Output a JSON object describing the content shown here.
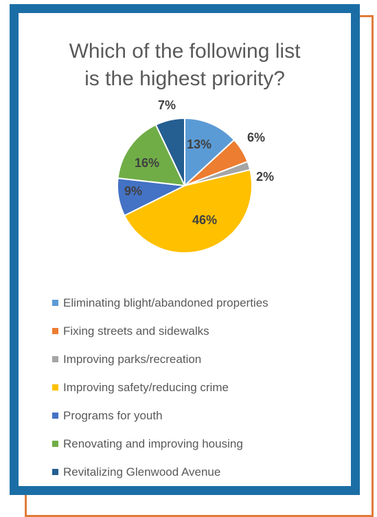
{
  "chart_data": {
    "type": "pie",
    "title_lines": [
      "Which of the following list",
      "is the highest priority?"
    ],
    "categories": [
      "Eliminating blight/abandoned properties",
      "Fixing streets and sidewalks",
      "Improving parks/recreation",
      "Improving safety/reducing crime",
      "Programs for youth",
      "Renovating and improving housing",
      "Revitalizing Glenwood Avenue"
    ],
    "values": [
      13,
      6,
      2,
      46,
      9,
      16,
      7
    ],
    "labels": [
      "13%",
      "6%",
      "2%",
      "46%",
      "9%",
      "16%",
      "7%"
    ],
    "colors": [
      "#5b9bd5",
      "#ed7d31",
      "#a5a5a5",
      "#ffc000",
      "#4472c4",
      "#70ad47",
      "#255e91"
    ],
    "legend_position": "bottom"
  },
  "colors": {
    "frame_blue": "#1b6ea5",
    "frame_orange": "#e07b39"
  }
}
